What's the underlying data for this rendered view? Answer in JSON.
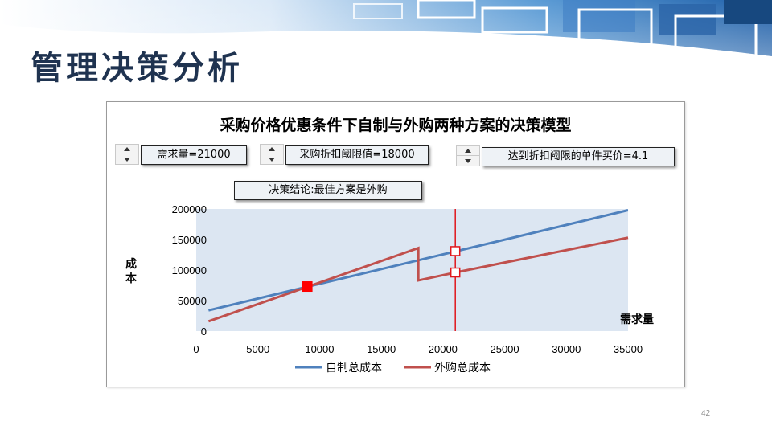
{
  "slide": {
    "title": "管理决策分析",
    "page_number": "42"
  },
  "controls": {
    "demand_label": "需求量=21000",
    "threshold_label": "采购折扣阈限值=18000",
    "unit_price_label": "达到折扣阈限的单件买价=4.1",
    "conclusion_label": "决策结论:最佳方案是外购"
  },
  "colors": {
    "self_make": "#4f81bd",
    "outsource": "#c0504d",
    "demand_line": "#e0161b",
    "breakeven_marker": "#ff0000",
    "plot_background": "#dce6f2",
    "title_color": "#1f3350"
  },
  "chart_data": {
    "type": "line",
    "title": "采购价格优惠条件下自制与外购两种方案的决策模型",
    "xlabel": "需求量",
    "ylabel": "成本",
    "xlim": [
      0,
      35000
    ],
    "ylim": [
      0,
      200000
    ],
    "x_ticks": [
      "0",
      "5000",
      "10000",
      "15000",
      "20000",
      "25000",
      "30000",
      "35000"
    ],
    "y_ticks": [
      "0",
      "50000",
      "100000",
      "150000",
      "200000"
    ],
    "grid": false,
    "legend_position": "bottom",
    "series": [
      {
        "name": "自制总成本",
        "points": [
          [
            1000,
            34000
          ],
          [
            35000,
            198000
          ]
        ]
      },
      {
        "name": "外购总成本",
        "points": [
          [
            1000,
            16000
          ],
          [
            18000,
            136000
          ],
          [
            18000,
            83000
          ],
          [
            21000,
            96000
          ],
          [
            35000,
            153000
          ]
        ]
      }
    ],
    "demand_line_x": 21000,
    "breakeven_point": [
      9000,
      73000
    ],
    "markers_at_demand": [
      {
        "series": "自制总成本",
        "y": 131000
      },
      {
        "series": "外购总成本",
        "y": 96000
      }
    ]
  }
}
